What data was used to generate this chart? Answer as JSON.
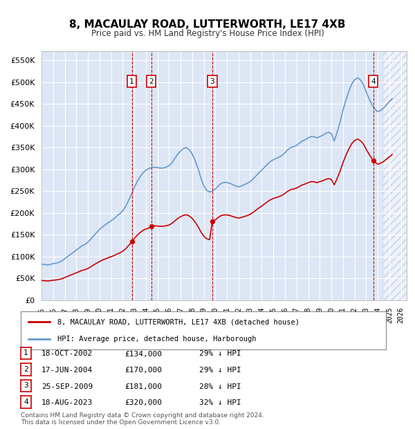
{
  "title": "8, MACAULAY ROAD, LUTTERWORTH, LE17 4XB",
  "subtitle": "Price paid vs. HM Land Registry's House Price Index (HPI)",
  "ylabel_ticks": [
    "£0",
    "£50K",
    "£100K",
    "£150K",
    "£200K",
    "£250K",
    "£300K",
    "£350K",
    "£400K",
    "£450K",
    "£500K",
    "£550K"
  ],
  "ytick_values": [
    0,
    50000,
    100000,
    150000,
    200000,
    250000,
    300000,
    350000,
    400000,
    450000,
    500000,
    550000
  ],
  "ylim": [
    0,
    570000
  ],
  "xlim_start": 1995.0,
  "xlim_end": 2026.5,
  "xtick_labels": [
    "1995",
    "1996",
    "1997",
    "1998",
    "1999",
    "2000",
    "2001",
    "2002",
    "2003",
    "2004",
    "2005",
    "2006",
    "2007",
    "2008",
    "2009",
    "2010",
    "2011",
    "2012",
    "2013",
    "2014",
    "2015",
    "2016",
    "2017",
    "2018",
    "2019",
    "2020",
    "2021",
    "2022",
    "2023",
    "2024",
    "2025",
    "2026"
  ],
  "xtick_values": [
    1995,
    1996,
    1997,
    1998,
    1999,
    2000,
    2001,
    2002,
    2003,
    2004,
    2005,
    2006,
    2007,
    2008,
    2009,
    2010,
    2011,
    2012,
    2013,
    2014,
    2015,
    2016,
    2017,
    2018,
    2019,
    2020,
    2021,
    2022,
    2023,
    2024,
    2025,
    2026
  ],
  "hpi_color": "#6699CC",
  "sale_color": "#CC0000",
  "transaction_color": "#CC0000",
  "background_color": "#dce6f5",
  "plot_bg_color": "#dce6f5",
  "grid_color": "#ffffff",
  "transactions": [
    {
      "num": 1,
      "date": "18-OCT-2002",
      "year": 2002.79,
      "price": 134000,
      "pct": "29%",
      "dir": "↓"
    },
    {
      "num": 2,
      "date": "17-JUN-2004",
      "year": 2004.46,
      "price": 170000,
      "pct": "29%",
      "dir": "↓"
    },
    {
      "num": 3,
      "date": "25-SEP-2009",
      "year": 2009.73,
      "price": 181000,
      "pct": "28%",
      "dir": "↓"
    },
    {
      "num": 4,
      "date": "18-AUG-2023",
      "year": 2023.62,
      "price": 320000,
      "pct": "32%",
      "dir": "↓"
    }
  ],
  "legend_label_red": "8, MACAULAY ROAD, LUTTERWORTH, LE17 4XB (detached house)",
  "legend_label_blue": "HPI: Average price, detached house, Harborough",
  "footnote": "Contains HM Land Registry data © Crown copyright and database right 2024.\nThis data is licensed under the Open Government Licence v3.0.",
  "hpi_data_x": [
    1995.0,
    1995.25,
    1995.5,
    1995.75,
    1996.0,
    1996.25,
    1996.5,
    1996.75,
    1997.0,
    1997.25,
    1997.5,
    1997.75,
    1998.0,
    1998.25,
    1998.5,
    1998.75,
    1999.0,
    1999.25,
    1999.5,
    1999.75,
    2000.0,
    2000.25,
    2000.5,
    2000.75,
    2001.0,
    2001.25,
    2001.5,
    2001.75,
    2002.0,
    2002.25,
    2002.5,
    2002.75,
    2003.0,
    2003.25,
    2003.5,
    2003.75,
    2004.0,
    2004.25,
    2004.5,
    2004.75,
    2005.0,
    2005.25,
    2005.5,
    2005.75,
    2006.0,
    2006.25,
    2006.5,
    2006.75,
    2007.0,
    2007.25,
    2007.5,
    2007.75,
    2008.0,
    2008.25,
    2008.5,
    2008.75,
    2009.0,
    2009.25,
    2009.5,
    2009.75,
    2010.0,
    2010.25,
    2010.5,
    2010.75,
    2011.0,
    2011.25,
    2011.5,
    2011.75,
    2012.0,
    2012.25,
    2012.5,
    2012.75,
    2013.0,
    2013.25,
    2013.5,
    2013.75,
    2014.0,
    2014.25,
    2014.5,
    2014.75,
    2015.0,
    2015.25,
    2015.5,
    2015.75,
    2016.0,
    2016.25,
    2016.5,
    2016.75,
    2017.0,
    2017.25,
    2017.5,
    2017.75,
    2018.0,
    2018.25,
    2018.5,
    2018.75,
    2019.0,
    2019.25,
    2019.5,
    2019.75,
    2020.0,
    2020.25,
    2020.5,
    2020.75,
    2021.0,
    2021.25,
    2021.5,
    2021.75,
    2022.0,
    2022.25,
    2022.5,
    2022.75,
    2023.0,
    2023.25,
    2023.5,
    2023.75,
    2024.0,
    2024.25,
    2024.5,
    2024.75,
    2025.0,
    2025.25
  ],
  "hpi_data_y": [
    83000,
    82000,
    81000,
    82000,
    84000,
    85000,
    87000,
    90000,
    95000,
    100000,
    105000,
    110000,
    115000,
    120000,
    125000,
    128000,
    133000,
    140000,
    148000,
    155000,
    162000,
    168000,
    173000,
    178000,
    182000,
    187000,
    193000,
    198000,
    205000,
    215000,
    228000,
    242000,
    258000,
    272000,
    283000,
    292000,
    298000,
    302000,
    304000,
    305000,
    304000,
    303000,
    303000,
    305000,
    308000,
    315000,
    325000,
    335000,
    342000,
    348000,
    350000,
    345000,
    335000,
    320000,
    302000,
    280000,
    262000,
    252000,
    248000,
    250000,
    255000,
    262000,
    268000,
    270000,
    270000,
    268000,
    265000,
    262000,
    260000,
    262000,
    265000,
    268000,
    272000,
    278000,
    285000,
    292000,
    298000,
    305000,
    312000,
    318000,
    322000,
    325000,
    328000,
    332000,
    338000,
    345000,
    350000,
    352000,
    355000,
    360000,
    365000,
    368000,
    372000,
    375000,
    375000,
    372000,
    375000,
    378000,
    382000,
    385000,
    382000,
    365000,
    385000,
    408000,
    435000,
    458000,
    478000,
    495000,
    505000,
    510000,
    505000,
    495000,
    478000,
    462000,
    448000,
    438000,
    432000,
    435000,
    440000,
    448000,
    455000,
    462000
  ],
  "sale_data_x": [
    2002.79,
    2004.46,
    2009.73,
    2023.62
  ],
  "sale_data_y": [
    134000,
    170000,
    181000,
    320000
  ],
  "hatch_x_start": 2024.5,
  "hatch_x_end": 2026.5
}
